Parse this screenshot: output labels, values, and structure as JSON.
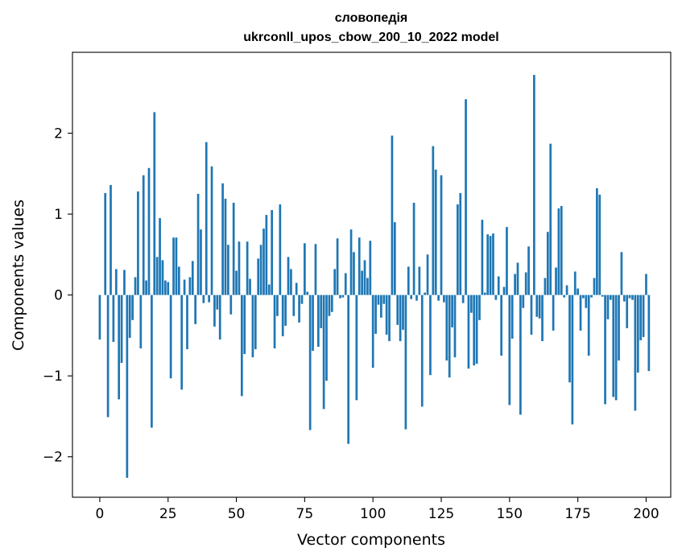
{
  "chart_data": {
    "type": "bar",
    "title": "словопедія",
    "subtitle": "ukrconll_upos_cbow_200_10_2022 model",
    "xlabel": "Vector components",
    "ylabel": "Components values",
    "xlim": [
      -10,
      209
    ],
    "ylim": [
      -2.5,
      3.0
    ],
    "x_ticks": [
      0,
      25,
      50,
      75,
      100,
      125,
      150,
      175,
      200
    ],
    "x_tick_labels": [
      "0",
      "25",
      "50",
      "75",
      "100",
      "125",
      "150",
      "175",
      "200"
    ],
    "y_ticks": [
      -2,
      -1,
      0,
      1,
      2
    ],
    "y_tick_labels": [
      "−2",
      "−1",
      "0",
      "1",
      "2"
    ],
    "grid": false,
    "bar_color": "#1f77b4",
    "values": [
      -0.55,
      0.0,
      1.26,
      -1.51,
      1.36,
      -0.58,
      0.32,
      -1.29,
      -0.84,
      0.31,
      -2.26,
      -0.53,
      -0.31,
      0.22,
      1.28,
      -0.66,
      1.48,
      0.18,
      1.57,
      -1.64,
      2.26,
      0.47,
      0.95,
      0.43,
      0.18,
      0.16,
      -1.03,
      0.71,
      0.71,
      0.35,
      -1.17,
      0.19,
      -0.67,
      0.22,
      0.42,
      -0.36,
      1.25,
      0.81,
      -0.1,
      1.89,
      -0.09,
      1.59,
      -0.39,
      -0.18,
      -0.55,
      1.38,
      1.19,
      0.62,
      -0.24,
      1.14,
      0.3,
      0.66,
      -1.25,
      -0.73,
      0.66,
      0.2,
      -0.77,
      -0.67,
      0.45,
      0.62,
      0.82,
      0.99,
      0.13,
      1.05,
      -0.66,
      -0.26,
      1.12,
      -0.51,
      -0.38,
      0.47,
      0.32,
      -0.26,
      0.15,
      -0.34,
      -0.11,
      0.64,
      0.04,
      -1.67,
      -0.69,
      0.63,
      -0.64,
      -0.41,
      -1.41,
      -1.06,
      -0.26,
      -0.21,
      0.32,
      0.7,
      -0.04,
      -0.03,
      0.27,
      -1.84,
      0.81,
      0.53,
      -1.3,
      0.71,
      0.3,
      0.43,
      0.21,
      0.67,
      -0.9,
      -0.48,
      -0.12,
      -0.28,
      -0.11,
      -0.49,
      -0.57,
      1.97,
      0.9,
      -0.37,
      -0.57,
      -0.43,
      -1.66,
      0.35,
      -0.05,
      1.14,
      -0.07,
      0.35,
      -1.38,
      0.03,
      0.5,
      -0.99,
      1.84,
      1.55,
      -0.07,
      1.48,
      -0.09,
      -0.81,
      -1.02,
      -0.4,
      -0.77,
      1.12,
      1.26,
      -0.1,
      2.42,
      -0.91,
      -0.22,
      -0.87,
      -0.85,
      -0.31,
      0.93,
      0.03,
      0.75,
      0.73,
      0.76,
      -0.06,
      0.23,
      -0.75,
      0.1,
      0.84,
      -1.36,
      -0.54,
      0.26,
      0.4,
      -1.48,
      -0.16,
      0.28,
      0.6,
      -0.49,
      2.72,
      -0.27,
      -0.29,
      -0.57,
      0.21,
      0.78,
      1.87,
      -0.44,
      0.34,
      1.07,
      1.1,
      -0.03,
      0.12,
      -1.08,
      -1.6,
      0.29,
      0.08,
      -0.44,
      -0.04,
      -0.16,
      -0.75,
      -0.03,
      0.21,
      1.32,
      1.24,
      -0.02,
      -1.35,
      -0.3,
      -0.06,
      -1.26,
      -1.3,
      -0.81,
      0.53,
      -0.08,
      -0.41,
      -0.04,
      -0.06,
      -1.43,
      -0.96,
      -0.56,
      -0.52,
      0.26,
      -0.94
    ]
  }
}
